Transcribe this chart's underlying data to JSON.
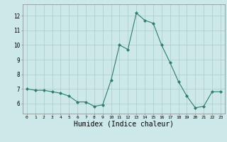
{
  "x": [
    0,
    1,
    2,
    3,
    4,
    5,
    6,
    7,
    8,
    9,
    10,
    11,
    12,
    13,
    14,
    15,
    16,
    17,
    18,
    19,
    20,
    21,
    22,
    23
  ],
  "y": [
    7.0,
    6.9,
    6.9,
    6.8,
    6.7,
    6.5,
    6.1,
    6.1,
    5.8,
    5.9,
    7.6,
    10.0,
    9.7,
    12.2,
    11.7,
    11.5,
    10.0,
    8.8,
    7.5,
    6.5,
    5.7,
    5.8,
    6.8,
    6.8
  ],
  "line_color": "#2e7d6e",
  "marker": "D",
  "marker_size": 2.0,
  "bg_color": "#cce8e8",
  "grid_color": "#b0d0d0",
  "xlabel": "Humidex (Indice chaleur)",
  "xlabel_fontsize": 7,
  "yticks": [
    6,
    7,
    8,
    9,
    10,
    11,
    12
  ],
  "xticks": [
    0,
    1,
    2,
    3,
    4,
    5,
    6,
    7,
    8,
    9,
    10,
    11,
    12,
    13,
    14,
    15,
    16,
    17,
    18,
    19,
    20,
    21,
    22,
    23
  ],
  "ylim": [
    5.3,
    12.8
  ],
  "xlim": [
    -0.5,
    23.5
  ]
}
